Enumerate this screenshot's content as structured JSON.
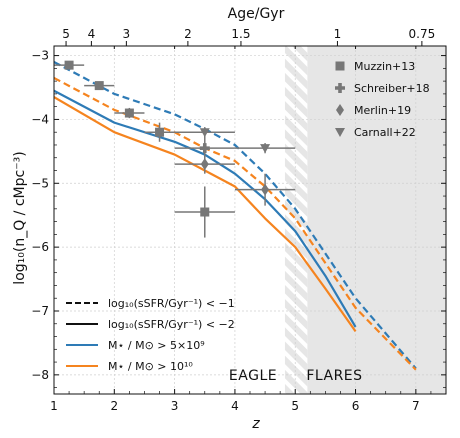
{
  "chart_data": {
    "type": "line",
    "xlabel": "z",
    "ylabel": "log₁₀(n_Q / cMpc⁻³)",
    "top_xlabel": "Age/Gyr",
    "xlim": [
      1,
      7.5
    ],
    "ylim": [
      -8.3,
      -2.85
    ],
    "x_ticks": [
      1,
      2,
      3,
      4,
      5,
      6,
      7
    ],
    "x_tick_labels": [
      "1",
      "2",
      "3",
      "4",
      "5",
      "6",
      "7"
    ],
    "y_ticks": [
      -8,
      -7,
      -6,
      -5,
      -4,
      -3
    ],
    "y_tick_labels": [
      "−8",
      "−7",
      "−6",
      "−5",
      "−4",
      "−3"
    ],
    "top_ticks": [
      {
        "label": "5",
        "z": 1.2
      },
      {
        "label": "4",
        "z": 1.62
      },
      {
        "label": "3",
        "z": 2.2
      },
      {
        "label": "2",
        "z": 3.22
      },
      {
        "label": "1.5",
        "z": 4.1
      },
      {
        "label": "1",
        "z": 5.7
      },
      {
        "label": "0.75",
        "z": 7.1
      }
    ],
    "regions": [
      {
        "name": "EAGLE",
        "label": "EAGLE",
        "x_text": 4.3,
        "y_text": -8.0
      },
      {
        "name": "FLARES",
        "label": "FLARES",
        "x_text": 5.65,
        "y_text": -8.0
      }
    ],
    "hatch_range": [
      4.83,
      5.2
    ],
    "flares_range": [
      5.2,
      7.5
    ],
    "colors": {
      "blue": "#2e7bb6",
      "orange": "#f5841f",
      "obs": "#777777",
      "shade": "#e6e6e6",
      "hatch": "#ffffff"
    },
    "series": [
      {
        "style": "dashed",
        "color": "#2e7bb6",
        "x": [
          1.0,
          2.0,
          3.0,
          3.5,
          4.0,
          4.5,
          5.0,
          6.0,
          7.0
        ],
        "y": [
          -3.1,
          -3.6,
          -3.92,
          -4.15,
          -4.4,
          -4.85,
          -5.4,
          -6.8,
          -7.9
        ]
      },
      {
        "style": "dashed",
        "color": "#f5841f",
        "x": [
          1.0,
          2.0,
          3.0,
          3.5,
          4.0,
          4.5,
          5.0,
          6.0,
          7.0
        ],
        "y": [
          -3.35,
          -3.85,
          -4.2,
          -4.45,
          -4.65,
          -5.05,
          -5.55,
          -6.95,
          -7.92
        ]
      },
      {
        "style": "solid",
        "color": "#2e7bb6",
        "x": [
          1.0,
          2.0,
          3.0,
          3.5,
          4.0,
          4.5,
          5.0,
          5.5,
          6.0
        ],
        "y": [
          -3.55,
          -4.05,
          -4.35,
          -4.55,
          -4.85,
          -5.25,
          -5.75,
          -6.45,
          -7.25
        ]
      },
      {
        "style": "solid",
        "color": "#f5841f",
        "x": [
          1.0,
          2.0,
          3.0,
          3.5,
          4.0,
          4.5,
          5.0,
          5.5,
          6.0
        ],
        "y": [
          -3.65,
          -4.2,
          -4.55,
          -4.8,
          -5.05,
          -5.55,
          -6.0,
          -6.65,
          -7.32
        ]
      }
    ],
    "observations": [
      {
        "name": "Muzzin+13",
        "marker": "square",
        "points": [
          {
            "x": 1.25,
            "y": -3.15,
            "xerr": 0.25,
            "yerr": 0.05
          },
          {
            "x": 1.75,
            "y": -3.47,
            "xerr": 0.25,
            "yerr": 0.05
          },
          {
            "x": 2.25,
            "y": -3.9,
            "xerr": 0.25,
            "yerr": 0.08
          },
          {
            "x": 2.75,
            "y": -4.2,
            "xerr": 0.25,
            "yerr": 0.15
          },
          {
            "x": 3.5,
            "y": -5.45,
            "xerr": 0.5,
            "yerr": 0.4
          }
        ]
      },
      {
        "name": "Schreiber+18",
        "marker": "plus",
        "points": [
          {
            "x": 3.5,
            "y": -4.45,
            "xerr": 0.5,
            "yerr": 0.2
          }
        ]
      },
      {
        "name": "Merlin+19",
        "marker": "diamond",
        "points": [
          {
            "x": 3.5,
            "y": -4.7,
            "xerr": 0.5,
            "yerr": 0.15
          },
          {
            "x": 4.5,
            "y": -5.1,
            "xerr": 0.5,
            "yerr": 0.25
          }
        ]
      },
      {
        "name": "Carnall+22",
        "marker": "triangle_down",
        "points": [
          {
            "x": 3.5,
            "y": -4.2,
            "xerr": 0.5,
            "yerr": 0.08
          },
          {
            "x": 4.5,
            "y": -4.45,
            "xerr": 0.5,
            "yerr": 0.08
          }
        ]
      }
    ],
    "legend_markers": [
      {
        "label": "Muzzin+13",
        "marker": "square"
      },
      {
        "label": "Schreiber+18",
        "marker": "plus"
      },
      {
        "label": "Merlin+19",
        "marker": "diamond"
      },
      {
        "label": "Carnall+22",
        "marker": "triangle_down"
      }
    ],
    "legend_markers_placement": "top-right",
    "legend_lines_placement": "bottom-left",
    "legend_lines": [
      {
        "label": "log₁₀(sSFR/Gyr⁻¹) < −1",
        "style": "dashed",
        "color": "#111111"
      },
      {
        "label": "log₁₀(sSFR/Gyr⁻¹) < −2",
        "style": "solid",
        "color": "#111111"
      },
      {
        "label": "M⋆ / M⊙ > 5×10⁹",
        "style": "solid",
        "color": "#2e7bb6"
      },
      {
        "label": "M⋆ / M⊙ > 10¹⁰",
        "style": "solid",
        "color": "#f5841f"
      }
    ]
  }
}
